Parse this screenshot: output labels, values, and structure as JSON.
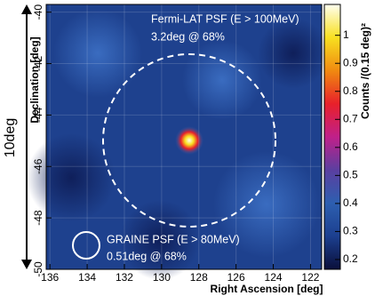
{
  "chart_data": {
    "type": "skymap",
    "xlabel": "Right Ascension [deg]",
    "ylabel": "Declination [deg]",
    "xlim": [
      136.2,
      121.4
    ],
    "xticks": [
      136,
      134,
      132,
      130,
      128,
      126,
      124,
      122
    ],
    "ylim": [
      -50,
      -39.7
    ],
    "yticks": [
      -50,
      -48,
      -46,
      -44,
      -42,
      -40
    ],
    "colorbar_label": "Counts /(0.15 deg)²",
    "zlim": [
      0.165,
      1.11
    ],
    "zticks": [
      0.2,
      0.3,
      0.4,
      0.5,
      0.6,
      0.7,
      0.8,
      0.9,
      1
    ],
    "colormap": [
      "#0a0f3a",
      "#1c3f8f",
      "#2d5fb0",
      "#5b3fa0",
      "#c0208a",
      "#e8202a",
      "#f08a10",
      "#f8e020",
      "#fffff0"
    ],
    "scale_label": "10deg",
    "annotations": [
      "Fermi-LAT PSF (E > 100MeV)",
      "3.2deg @ 68%",
      "GRAINE PSF (E > 80MeV)",
      "0.51deg @ 68%"
    ]
  }
}
